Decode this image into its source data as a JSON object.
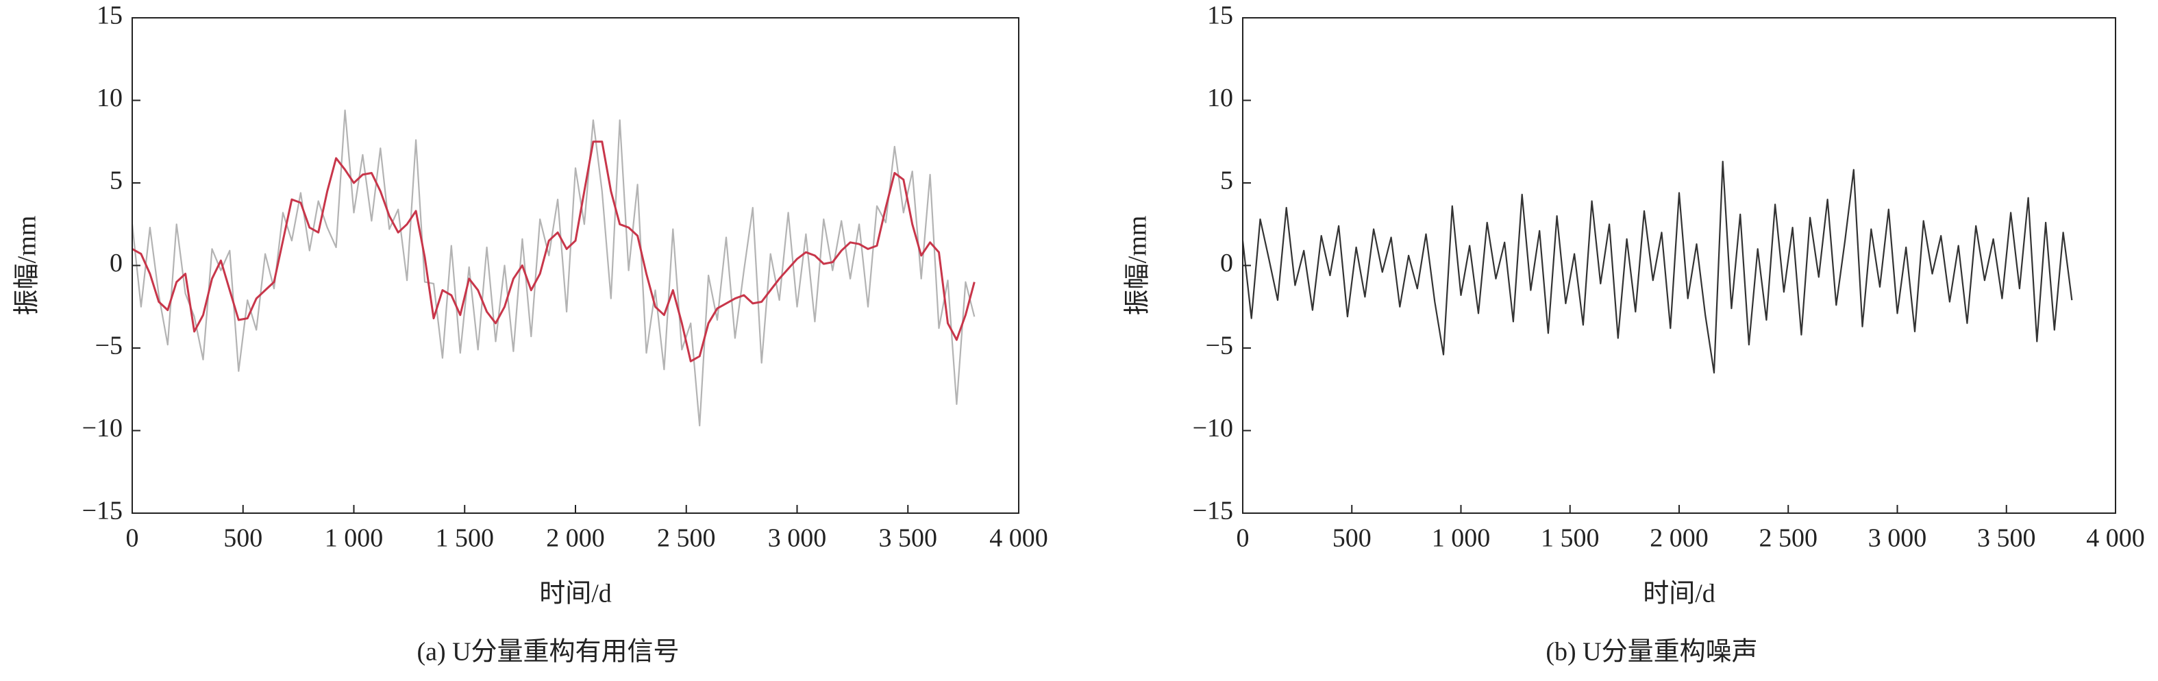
{
  "chart_data": [
    {
      "type": "line",
      "caption": "(a) U分量重构有用信号",
      "xlabel": "时间/d",
      "ylabel": "振幅/mm",
      "xlim": [
        0,
        4000
      ],
      "ylim": [
        -15,
        15
      ],
      "xticks": [
        0,
        500,
        {
          "value": 1000,
          "label": "1 000"
        },
        {
          "value": 1500,
          "label": "1 500"
        },
        {
          "value": 2000,
          "label": "2 000"
        },
        {
          "value": 2500,
          "label": "2 500"
        },
        {
          "value": 3000,
          "label": "3 000"
        },
        {
          "value": 3500,
          "label": "3 500"
        },
        {
          "value": 4000,
          "label": "4 000"
        }
      ],
      "yticks": [
        {
          "value": -15,
          "label": "−15"
        },
        {
          "value": -10,
          "label": "−10"
        },
        {
          "value": -5,
          "label": "−5"
        },
        0,
        5,
        10,
        15
      ],
      "x": [
        0,
        40,
        80,
        120,
        160,
        200,
        240,
        280,
        320,
        360,
        400,
        440,
        480,
        520,
        560,
        600,
        640,
        680,
        720,
        760,
        800,
        840,
        880,
        920,
        960,
        1000,
        1040,
        1080,
        1120,
        1160,
        1200,
        1240,
        1280,
        1320,
        1360,
        1400,
        1440,
        1480,
        1520,
        1560,
        1600,
        1640,
        1680,
        1720,
        1760,
        1800,
        1840,
        1880,
        1920,
        1960,
        2000,
        2040,
        2080,
        2120,
        2160,
        2200,
        2240,
        2280,
        2320,
        2360,
        2400,
        2440,
        2480,
        2520,
        2560,
        2600,
        2640,
        2680,
        2720,
        2760,
        2800,
        2840,
        2880,
        2920,
        2960,
        3000,
        3040,
        3080,
        3120,
        3160,
        3200,
        3240,
        3280,
        3320,
        3360,
        3400,
        3440,
        3480,
        3520,
        3560,
        3600,
        3640,
        3680,
        3720,
        3760,
        3800
      ],
      "series": [
        {
          "color": "#b3b3b3",
          "values": [
            2.5,
            -2.5,
            2.3,
            -1.8,
            -4.8,
            2.5,
            -1.7,
            -3.1,
            -5.7,
            1.0,
            -0.3,
            0.9,
            -6.4,
            -2.1,
            -3.9,
            0.7,
            -1.4,
            3.2,
            1.5,
            4.4,
            0.9,
            3.9,
            2.3,
            1.1,
            9.4,
            3.2,
            6.7,
            2.7,
            7.1,
            2.2,
            3.4,
            -0.9,
            7.6,
            -1.0,
            -1.1,
            -5.6,
            1.2,
            -5.3,
            -0.1,
            -5.1,
            1.1,
            -4.6,
            0.0,
            -5.2,
            1.6,
            -4.3,
            2.8,
            0.6,
            4.0,
            -2.8,
            5.9,
            2.5,
            8.8,
            4.5,
            -2.0,
            8.8,
            -0.3,
            4.9,
            -5.3,
            -1.5,
            -6.3,
            2.2,
            -5.1,
            -3.5,
            -9.7,
            -0.6,
            -3.3,
            1.7,
            -4.4,
            -0.3,
            3.5,
            -5.9,
            0.7,
            -2.1,
            3.2,
            -2.5,
            1.9,
            -3.4,
            2.8,
            -0.3,
            2.7,
            -0.8,
            2.5,
            -2.5,
            3.6,
            2.6,
            7.2,
            3.2,
            5.7,
            -0.8,
            5.5,
            -3.8,
            -0.9,
            -8.4,
            -1.0,
            -3.1
          ]
        },
        {
          "color": "#c8364a",
          "values": [
            1.0,
            0.7,
            -0.5,
            -2.2,
            -2.7,
            -1.0,
            -0.5,
            -4.0,
            -3.0,
            -0.8,
            0.3,
            -1.5,
            -3.3,
            -3.2,
            -2.0,
            -1.5,
            -1.0,
            1.5,
            4.0,
            3.8,
            2.3,
            2.0,
            4.5,
            6.5,
            5.8,
            5.0,
            5.5,
            5.6,
            4.5,
            3.0,
            2.0,
            2.5,
            3.3,
            0.5,
            -3.2,
            -1.5,
            -1.8,
            -3.0,
            -0.8,
            -1.5,
            -2.8,
            -3.5,
            -2.5,
            -0.8,
            0.0,
            -1.5,
            -0.5,
            1.5,
            2.0,
            1.0,
            1.5,
            4.5,
            7.5,
            7.5,
            4.5,
            2.5,
            2.3,
            1.8,
            -0.5,
            -2.5,
            -3.0,
            -1.5,
            -3.5,
            -5.8,
            -5.5,
            -3.5,
            -2.6,
            -2.3,
            -2.0,
            -1.8,
            -2.3,
            -2.2,
            -1.5,
            -0.8,
            -0.2,
            0.4,
            0.8,
            0.6,
            0.1,
            0.2,
            0.9,
            1.4,
            1.3,
            1.0,
            1.2,
            3.5,
            5.6,
            5.2,
            2.5,
            0.6,
            1.4,
            0.8,
            -3.5,
            -4.5,
            -3.0,
            -1.0
          ]
        }
      ]
    },
    {
      "type": "line",
      "caption": "(b) U分量重构噪声",
      "xlabel": "时间/d",
      "ylabel": "振幅/mm",
      "xlim": [
        0,
        4000
      ],
      "ylim": [
        -15,
        15
      ],
      "xticks": [
        0,
        500,
        {
          "value": 1000,
          "label": "1 000"
        },
        {
          "value": 1500,
          "label": "1 500"
        },
        {
          "value": 2000,
          "label": "2 000"
        },
        {
          "value": 2500,
          "label": "2 500"
        },
        {
          "value": 3000,
          "label": "3 000"
        },
        {
          "value": 3500,
          "label": "3 500"
        },
        {
          "value": 4000,
          "label": "4 000"
        }
      ],
      "yticks": [
        {
          "value": -15,
          "label": "−15"
        },
        {
          "value": -10,
          "label": "−10"
        },
        {
          "value": -5,
          "label": "−5"
        },
        0,
        5,
        10,
        15
      ],
      "x": [
        0,
        40,
        80,
        120,
        160,
        200,
        240,
        280,
        320,
        360,
        400,
        440,
        480,
        520,
        560,
        600,
        640,
        680,
        720,
        760,
        800,
        840,
        880,
        920,
        960,
        1000,
        1040,
        1080,
        1120,
        1160,
        1200,
        1240,
        1280,
        1320,
        1360,
        1400,
        1440,
        1480,
        1520,
        1560,
        1600,
        1640,
        1680,
        1720,
        1760,
        1800,
        1840,
        1880,
        1920,
        1960,
        2000,
        2040,
        2080,
        2120,
        2160,
        2200,
        2240,
        2280,
        2320,
        2360,
        2400,
        2440,
        2480,
        2520,
        2560,
        2600,
        2640,
        2680,
        2720,
        2760,
        2800,
        2840,
        2880,
        2920,
        2960,
        3000,
        3040,
        3080,
        3120,
        3160,
        3200,
        3240,
        3280,
        3320,
        3360,
        3400,
        3440,
        3480,
        3520,
        3560,
        3600,
        3640,
        3680,
        3720,
        3760,
        3800
      ],
      "series": [
        {
          "color": "#333333",
          "values": [
            1.5,
            -3.2,
            2.8,
            0.4,
            -2.1,
            3.5,
            -1.2,
            0.9,
            -2.7,
            1.8,
            -0.6,
            2.4,
            -3.1,
            1.1,
            -1.9,
            2.2,
            -0.4,
            1.7,
            -2.5,
            0.6,
            -1.4,
            1.9,
            -2.2,
            -5.4,
            3.6,
            -1.8,
            1.2,
            -2.9,
            2.6,
            -0.8,
            1.4,
            -3.4,
            4.3,
            -1.5,
            2.1,
            -4.1,
            3.0,
            -2.3,
            0.7,
            -3.6,
            3.9,
            -1.1,
            2.5,
            -4.4,
            1.6,
            -2.8,
            3.3,
            -0.9,
            2.0,
            -3.8,
            4.4,
            -2.0,
            1.3,
            -3.0,
            -6.5,
            6.3,
            -2.6,
            3.1,
            -4.8,
            1.0,
            -3.3,
            3.7,
            -1.6,
            2.3,
            -4.2,
            2.9,
            -0.7,
            4.0,
            -2.4,
            1.5,
            5.8,
            -3.7,
            2.2,
            -1.3,
            3.4,
            -2.9,
            1.1,
            -4.0,
            2.7,
            -0.5,
            1.8,
            -2.2,
            1.2,
            -3.5,
            2.4,
            -0.9,
            1.6,
            -2.0,
            3.2,
            -1.4,
            4.1,
            -4.6,
            2.6,
            -3.9,
            2.0,
            -2.1
          ]
        }
      ]
    }
  ]
}
